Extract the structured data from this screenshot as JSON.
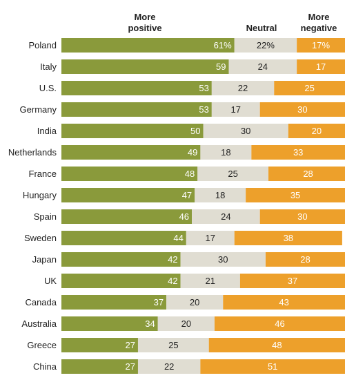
{
  "chart_data": {
    "type": "bar",
    "stacked": true,
    "orientation": "horizontal",
    "categories": [
      "Poland",
      "Italy",
      "U.S.",
      "Germany",
      "India",
      "Netherlands",
      "France",
      "Hungary",
      "Spain",
      "Sweden",
      "Japan",
      "UK",
      "Canada",
      "Australia",
      "Greece",
      "China"
    ],
    "series": [
      {
        "name": "More positive",
        "color": "#8a9a3b",
        "values": [
          61,
          59,
          53,
          53,
          50,
          49,
          48,
          47,
          46,
          44,
          42,
          42,
          37,
          34,
          27,
          27
        ],
        "labels": [
          "61%",
          "59",
          "53",
          "53",
          "50",
          "49",
          "48",
          "47",
          "46",
          "44",
          "42",
          "42",
          "37",
          "34",
          "27",
          "27"
        ]
      },
      {
        "name": "Neutral",
        "color": "#e0ddd2",
        "values": [
          22,
          24,
          22,
          17,
          30,
          18,
          25,
          18,
          24,
          17,
          30,
          21,
          20,
          20,
          25,
          22
        ],
        "labels": [
          "22%",
          "24",
          "22",
          "17",
          "30",
          "18",
          "25",
          "18",
          "24",
          "17",
          "30",
          "21",
          "20",
          "20",
          "25",
          "22"
        ]
      },
      {
        "name": "More negative",
        "color": "#eda02b",
        "values": [
          17,
          17,
          25,
          30,
          20,
          33,
          28,
          35,
          30,
          38,
          28,
          37,
          43,
          46,
          48,
          51
        ],
        "labels": [
          "17%",
          "17",
          "25",
          "30",
          "20",
          "33",
          "28",
          "35",
          "30",
          "38",
          "28",
          "37",
          "43",
          "46",
          "48",
          "51"
        ]
      }
    ],
    "headers": {
      "positive": [
        "More",
        "positive"
      ],
      "neutral": "Neutral",
      "negative": [
        "More",
        "negative"
      ]
    },
    "xlim": [
      0,
      100
    ]
  }
}
